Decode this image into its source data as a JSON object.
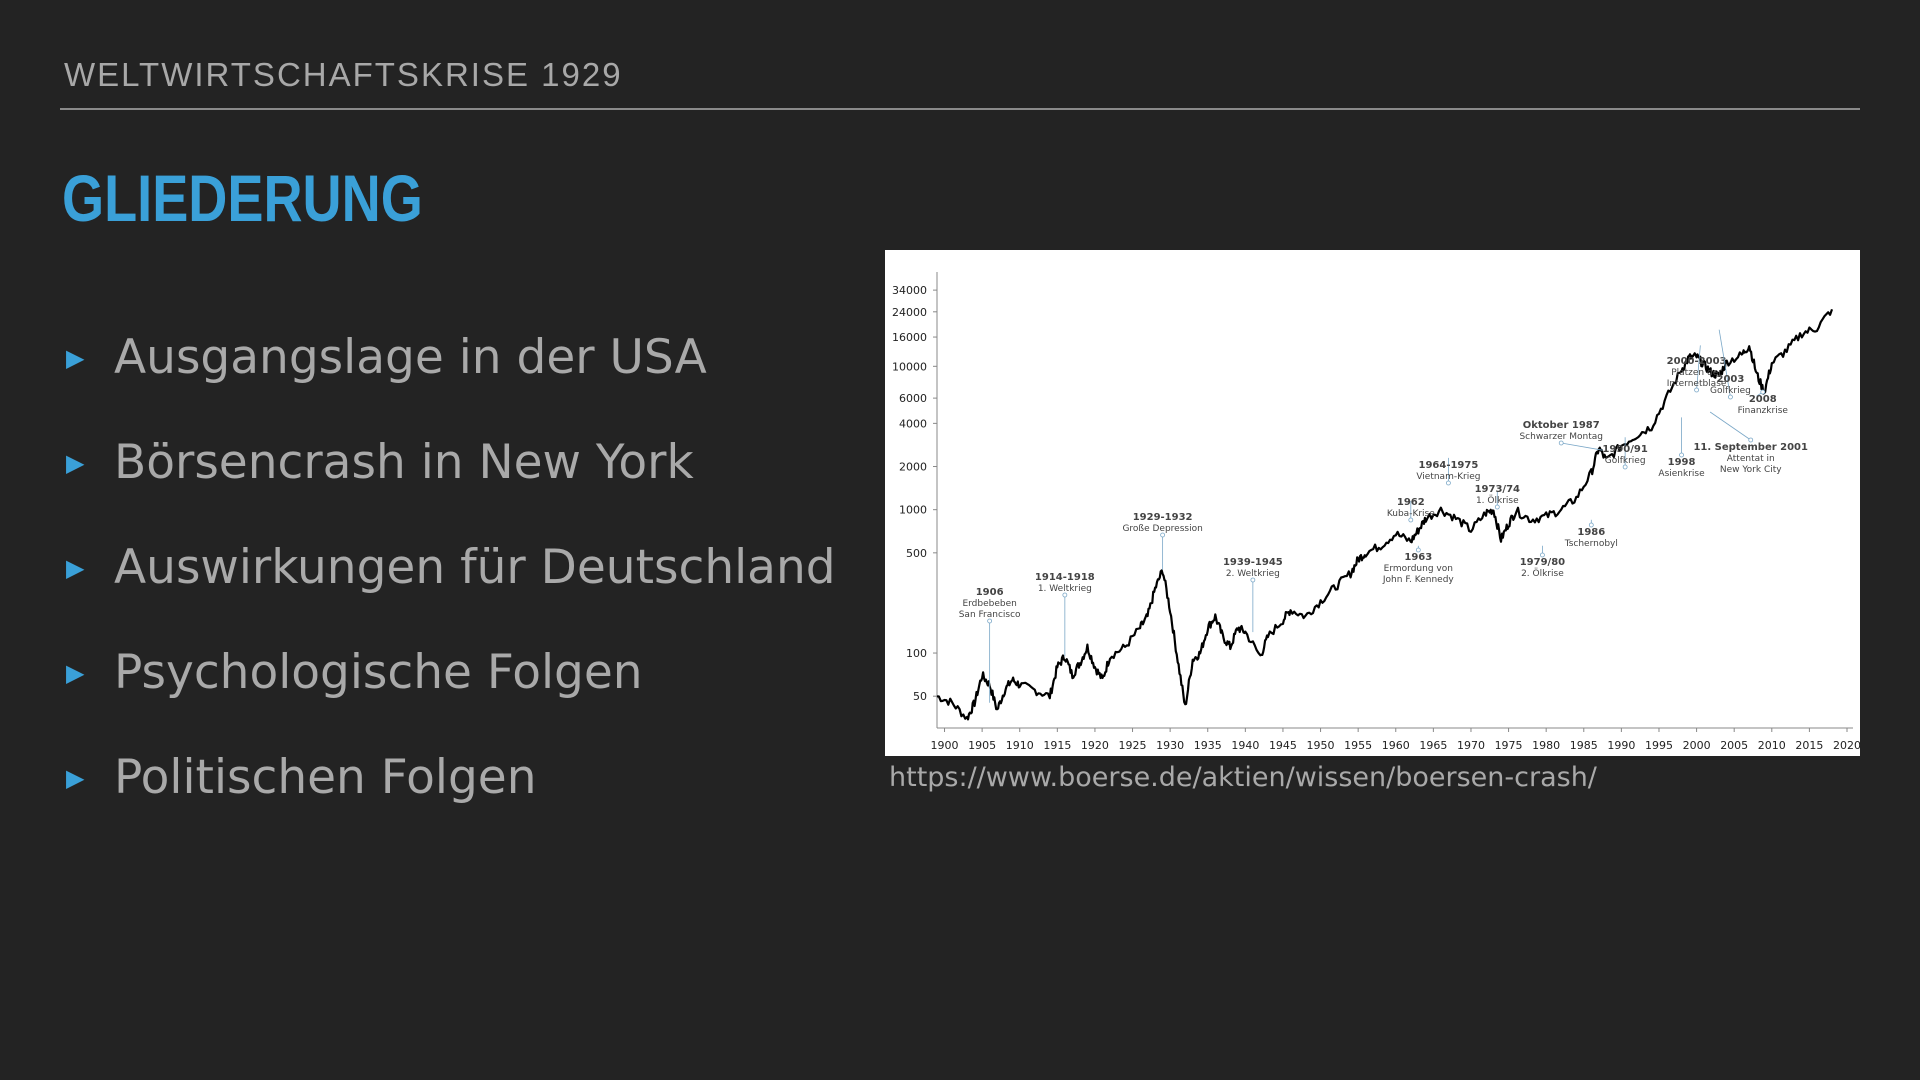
{
  "header": {
    "title": "WELTWIRTSCHAFTSKRISE 1929"
  },
  "title": "GLIEDERUNG",
  "bullets": [
    "Ausgangslage in der USA",
    "Börsencrash in New York",
    "Auswirkungen für Deutschland",
    "Psychologische Folgen",
    "Politischen Folgen"
  ],
  "bullet_marker": "▶",
  "colors": {
    "accent": "#3aa0d8",
    "background": "#232323",
    "text": "#a9a9a9"
  },
  "source": "https://www.boerse.de/aktien/wissen/boersen-crash/",
  "chart_data": {
    "type": "line",
    "title": "",
    "xlabel": "",
    "ylabel": "",
    "yscale": "log",
    "xlim": [
      1899,
      2020
    ],
    "ylim": [
      30,
      40000
    ],
    "x_ticks": [
      "1900",
      "1905",
      "1910",
      "1915",
      "1920",
      "1925",
      "1930",
      "1935",
      "1940",
      "1945",
      "1950",
      "1955",
      "1960",
      "1965",
      "1970",
      "1975",
      "1980",
      "1985",
      "1990",
      "1995",
      "2000",
      "2005",
      "2010",
      "2015",
      "2020"
    ],
    "y_ticks": [
      "50",
      "100",
      "500",
      "1000",
      "2000",
      "4000",
      "6000",
      "10000",
      "16000",
      "24000",
      "34000"
    ],
    "series": [
      {
        "x": [
          1899,
          1901,
          1903,
          1904,
          1905,
          1906,
          1907,
          1908,
          1909,
          1910,
          1912,
          1914,
          1915,
          1916,
          1917,
          1918,
          1919,
          1920,
          1921,
          1922,
          1924,
          1926,
          1927,
          1928,
          1929,
          1930,
          1931,
          1932,
          1933,
          1934,
          1935,
          1936,
          1937,
          1938,
          1939,
          1940,
          1942,
          1943,
          1945,
          1946,
          1948,
          1950,
          1952,
          1954,
          1955,
          1956,
          1958,
          1960,
          1962,
          1963,
          1964,
          1966,
          1968,
          1970,
          1972,
          1973,
          1974,
          1975,
          1976,
          1978,
          1980,
          1982,
          1984,
          1986,
          1987,
          1988,
          1990,
          1992,
          1994,
          1996,
          1998,
          1999,
          2000,
          2001,
          2002,
          2003,
          2004,
          2006,
          2007,
          2008,
          2009,
          2010,
          2012,
          2014,
          2016,
          2018
        ],
        "values": [
          50,
          45,
          35,
          45,
          70,
          60,
          40,
          55,
          65,
          60,
          55,
          50,
          80,
          95,
          70,
          85,
          110,
          80,
          65,
          95,
          110,
          150,
          180,
          280,
          380,
          200,
          90,
          42,
          90,
          100,
          150,
          180,
          130,
          110,
          150,
          140,
          95,
          130,
          170,
          200,
          180,
          230,
          290,
          360,
          450,
          500,
          560,
          680,
          600,
          720,
          870,
          1000,
          870,
          720,
          950,
          1000,
          620,
          800,
          980,
          850,
          900,
          1000,
          1200,
          1800,
          2700,
          2200,
          2800,
          3300,
          3800,
          6000,
          9500,
          11500,
          11700,
          10200,
          9000,
          8600,
          10700,
          12000,
          14000,
          8800,
          6600,
          10500,
          13000,
          17000,
          18500,
          25000
        ]
      }
    ],
    "annotations": [
      {
        "year": "1906",
        "text": [
          "Erdbebeben",
          "San Francisco"
        ]
      },
      {
        "year": "1914-1918",
        "text": [
          "1. Weltkrieg"
        ]
      },
      {
        "year": "1929-1932",
        "text": [
          "Große Depression"
        ]
      },
      {
        "year": "1939-1945",
        "text": [
          "2. Weltkrieg"
        ]
      },
      {
        "year": "1962",
        "text": [
          "Kuba-Krise"
        ]
      },
      {
        "year": "1963",
        "text": [
          "Ermordung von",
          "John F. Kennedy"
        ]
      },
      {
        "year": "1964-1975",
        "text": [
          "Vietnam-Krieg"
        ]
      },
      {
        "year": "1973/74",
        "text": [
          "1. Ölkrise"
        ]
      },
      {
        "year": "1979/80",
        "text": [
          "2. Ölkrise"
        ]
      },
      {
        "year": "1986",
        "text": [
          "Tschernobyl"
        ]
      },
      {
        "year": "Oktober 1987",
        "text": [
          "Schwarzer Montag"
        ]
      },
      {
        "year": "1990/91",
        "text": [
          "Golfkrieg"
        ]
      },
      {
        "year": "1998",
        "text": [
          "Asienkrise"
        ]
      },
      {
        "year": "2000-2003",
        "text": [
          "Platzen der",
          "Internetblase"
        ]
      },
      {
        "year": "2003",
        "text": [
          "Golfkrieg"
        ]
      },
      {
        "year": "11. September 2001",
        "text": [
          "Attentat in",
          "New York City"
        ]
      },
      {
        "year": "2008",
        "text": [
          "Finanzkrise"
        ]
      }
    ]
  }
}
